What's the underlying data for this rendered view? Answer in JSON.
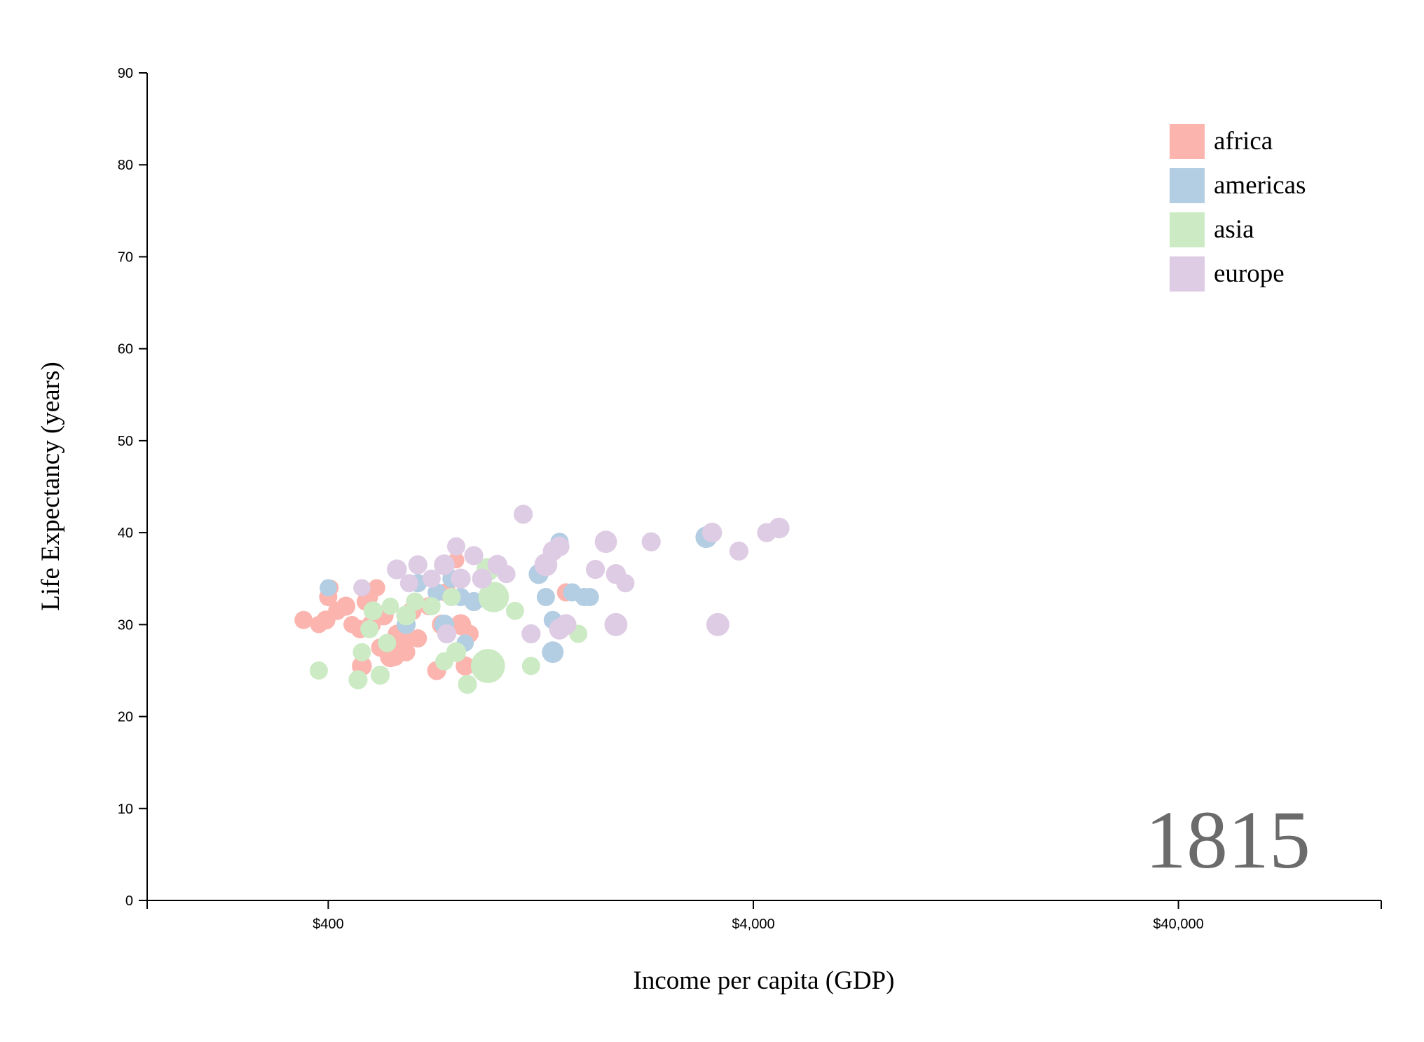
{
  "chart_data": {
    "type": "scatter",
    "xlabel": "Income per capita (GDP)",
    "ylabel": "Life Expectancy (years)",
    "x_scale": "log",
    "xlim": [
      150,
      120000
    ],
    "ylim": [
      0,
      90
    ],
    "x_ticks": [
      {
        "value": 400,
        "label": "$400"
      },
      {
        "value": 4000,
        "label": "$4,000"
      },
      {
        "value": 40000,
        "label": "$40,000"
      }
    ],
    "y_ticks": [
      0,
      10,
      20,
      30,
      40,
      50,
      60,
      70,
      80,
      90
    ],
    "year_label": "1815",
    "legend_position": "top-right",
    "grid": false,
    "series": [
      {
        "name": "africa",
        "color": "#fbb4ae",
        "points": [
          [
            350,
            30.5,
            1
          ],
          [
            380,
            30,
            0.9
          ],
          [
            395,
            30.5,
            1.1
          ],
          [
            400,
            33,
            1
          ],
          [
            405,
            34,
            0.8
          ],
          [
            420,
            31.5,
            1
          ],
          [
            440,
            32,
            1.1
          ],
          [
            455,
            30,
            0.9
          ],
          [
            475,
            29.5,
            1
          ],
          [
            480,
            25.5,
            1.2
          ],
          [
            490,
            32.5,
            1
          ],
          [
            500,
            33,
            0.9
          ],
          [
            505,
            30,
            1.1
          ],
          [
            520,
            34,
            0.9
          ],
          [
            540,
            31,
            1.2
          ],
          [
            560,
            26.5,
            1.3
          ],
          [
            575,
            26.5,
            1
          ],
          [
            590,
            29,
            1.2
          ],
          [
            600,
            28,
            1.1
          ],
          [
            610,
            27,
            1
          ],
          [
            630,
            31.5,
            1.1
          ],
          [
            650,
            28.5,
            1
          ],
          [
            690,
            32,
            1
          ],
          [
            720,
            25,
            1.1
          ],
          [
            740,
            30,
            1.2
          ],
          [
            760,
            33.5,
            1.1
          ],
          [
            800,
            37,
            0.8
          ],
          [
            820,
            30,
            1.3
          ],
          [
            840,
            25.5,
            1.1
          ],
          [
            860,
            29,
            1
          ],
          [
            1000,
            33,
            1
          ],
          [
            1450,
            33.5,
            1
          ],
          [
            530,
            27.5,
            1
          ],
          [
            580,
            29,
            1
          ]
        ]
      },
      {
        "name": "americas",
        "color": "#b3cde3",
        "points": [
          [
            400,
            34,
            0.9
          ],
          [
            610,
            30,
            1.1
          ],
          [
            650,
            34.5,
            1
          ],
          [
            720,
            33.5,
            1
          ],
          [
            750,
            30,
            1.2
          ],
          [
            780,
            35,
            1
          ],
          [
            820,
            33,
            1
          ],
          [
            840,
            28,
            0.9
          ],
          [
            880,
            32.5,
            1.1
          ],
          [
            920,
            25.5,
            1
          ],
          [
            1250,
            35.5,
            1.2
          ],
          [
            1300,
            33,
            1
          ],
          [
            1350,
            27,
            1.4
          ],
          [
            1350,
            30.5,
            1
          ],
          [
            1400,
            39,
            1
          ],
          [
            1600,
            33,
            1
          ],
          [
            1650,
            33,
            1
          ],
          [
            3100,
            39.5,
            1.4
          ],
          [
            1500,
            33.5,
            1
          ]
        ]
      },
      {
        "name": "asia",
        "color": "#ccebc5",
        "points": [
          [
            380,
            25,
            1
          ],
          [
            470,
            24,
            1.1
          ],
          [
            480,
            27,
            1
          ],
          [
            500,
            29.5,
            1
          ],
          [
            510,
            31.5,
            1.1
          ],
          [
            530,
            24.5,
            1.1
          ],
          [
            550,
            28,
            1
          ],
          [
            560,
            32,
            0.9
          ],
          [
            610,
            31,
            1.2
          ],
          [
            640,
            32.5,
            1
          ],
          [
            700,
            32,
            1
          ],
          [
            750,
            26,
            1
          ],
          [
            780,
            33,
            1
          ],
          [
            800,
            27,
            1.2
          ],
          [
            850,
            23.5,
            1.1
          ],
          [
            950,
            25.5,
            3.5
          ],
          [
            950,
            36,
            1.6
          ],
          [
            980,
            33,
            2.8
          ],
          [
            1100,
            31.5,
            1
          ],
          [
            1200,
            25.5,
            1
          ],
          [
            1550,
            29,
            1
          ]
        ]
      },
      {
        "name": "europe",
        "color": "#decbe4",
        "points": [
          [
            480,
            34,
            0.9
          ],
          [
            580,
            36,
            1.2
          ],
          [
            620,
            34.5,
            1
          ],
          [
            650,
            36.5,
            1.1
          ],
          [
            700,
            35,
            1
          ],
          [
            750,
            36.5,
            1.3
          ],
          [
            760,
            29,
            1.1
          ],
          [
            800,
            38.5,
            1
          ],
          [
            820,
            35,
            1.2
          ],
          [
            880,
            37.5,
            1.1
          ],
          [
            920,
            35,
            1.2
          ],
          [
            1000,
            36.5,
            1.2
          ],
          [
            1050,
            35.5,
            1
          ],
          [
            1150,
            42,
            1.1
          ],
          [
            1200,
            29,
            1.1
          ],
          [
            1300,
            36.5,
            1.6
          ],
          [
            1350,
            38,
            1.2
          ],
          [
            1400,
            38.5,
            1.2
          ],
          [
            1400,
            29.5,
            1.3
          ],
          [
            1450,
            30,
            1.3
          ],
          [
            1700,
            36,
            1.1
          ],
          [
            1800,
            39,
            1.5
          ],
          [
            1900,
            30,
            1.6
          ],
          [
            1900,
            35.5,
            1.2
          ],
          [
            2000,
            34.5,
            1
          ],
          [
            2300,
            39,
            1.1
          ],
          [
            3200,
            40,
            1.2
          ],
          [
            3300,
            30,
            1.6
          ],
          [
            3700,
            38,
            1.1
          ],
          [
            4300,
            40,
            1.1
          ],
          [
            4600,
            40.5,
            1.3
          ]
        ]
      }
    ]
  }
}
